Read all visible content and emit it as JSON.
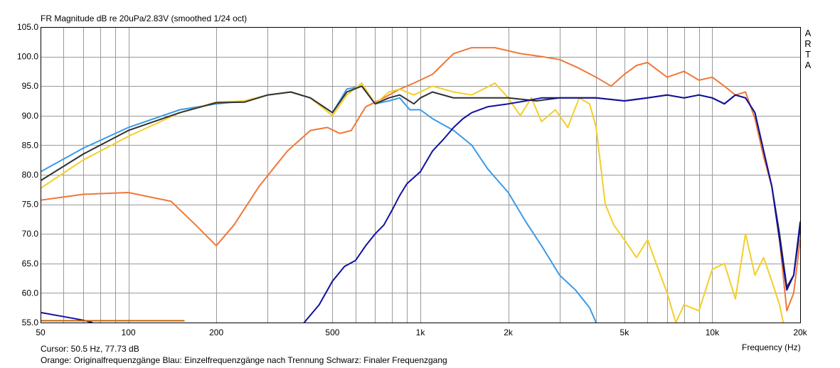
{
  "header": {
    "title": "FR Magnitude dB re 20uPa/2.83V (smoothed 1/24 oct)",
    "brand_letters": [
      "A",
      "R",
      "T",
      "A"
    ]
  },
  "footer": {
    "cursor": "Cursor: 50.5 Hz, 77.73 dB",
    "legend_text": "Orange: Originalfrequenzgänge   Blau: Einzelfrequenzgänge nach Trennung   Schwarz: Finaler Frequenzgang",
    "xlabel": "Frequency (Hz)"
  },
  "colors": {
    "orange": "#F07838",
    "light_blue": "#3A9AE8",
    "yellow": "#F4CE28",
    "black": "#303030",
    "dark_blue": "#1010A0",
    "cursor_line": "#C06000",
    "grid": "#9a9a9a"
  },
  "chart_data": {
    "type": "line",
    "title": "FR Magnitude dB re 20uPa/2.83V (smoothed 1/24 oct)",
    "xlabel": "Frequency (Hz)",
    "ylabel": "",
    "xscale": "log",
    "xlim": [
      50,
      20000
    ],
    "ylim": [
      55,
      105
    ],
    "grid": true,
    "x_tick_labels": [
      "50",
      "100",
      "200",
      "500",
      "1k",
      "2k",
      "5k",
      "10k",
      "20k"
    ],
    "x_tick_values": [
      50,
      100,
      200,
      500,
      1000,
      2000,
      5000,
      10000,
      20000
    ],
    "y_tick_labels": [
      "105.0",
      "100.0",
      "95.0",
      "90.0",
      "85.0",
      "80.0",
      "75.0",
      "70.0",
      "65.0",
      "60.0",
      "55.0"
    ],
    "y_tick_values": [
      105,
      100,
      95,
      90,
      85,
      80,
      75,
      70,
      65,
      60,
      55
    ],
    "series": [
      {
        "color": "#F07838",
        "x": [
          50,
          70,
          100,
          140,
          170,
          200,
          230,
          280,
          350,
          420,
          480,
          530,
          580,
          650,
          750,
          850,
          950,
          1100,
          1300,
          1500,
          1800,
          2200,
          2600,
          3000,
          3500,
          4000,
          4500,
          5000,
          5500,
          6000,
          7000,
          8000,
          9000,
          10000,
          11000,
          12000,
          13000,
          14000,
          15000,
          16000,
          17000,
          18000,
          19000,
          20000
        ],
        "y": [
          75.7,
          76.7,
          77.0,
          75.5,
          71.5,
          68.0,
          71.5,
          78.0,
          84.0,
          87.5,
          88.0,
          87.0,
          87.5,
          91.5,
          93.0,
          94.5,
          95.5,
          97.0,
          100.5,
          101.5,
          101.5,
          100.5,
          100.0,
          99.5,
          98.0,
          96.5,
          95.0,
          97.0,
          98.5,
          99.0,
          96.5,
          97.5,
          96.0,
          96.5,
          95.0,
          93.5,
          94.0,
          89.5,
          83.0,
          78.0,
          69.0,
          57.0,
          60.0,
          69.0
        ]
      },
      {
        "color": "#3A9AE8",
        "x": [
          50,
          70,
          100,
          150,
          200,
          250,
          300,
          360,
          420,
          500,
          560,
          630,
          700,
          780,
          850,
          920,
          1000,
          1100,
          1300,
          1500,
          1700,
          2000,
          2300,
          2600,
          3000,
          3400,
          3800,
          4000
        ],
        "y": [
          80.5,
          84.5,
          88.0,
          91.0,
          92.0,
          92.5,
          93.5,
          94.0,
          93.0,
          90.5,
          94.5,
          95.0,
          92.0,
          92.5,
          93.0,
          91.0,
          91.0,
          89.5,
          87.5,
          85.0,
          81.0,
          77.0,
          72.0,
          68.0,
          63.0,
          60.5,
          57.5,
          55.0
        ]
      },
      {
        "color": "#F4CE28",
        "x": [
          50,
          70,
          100,
          150,
          200,
          250,
          300,
          360,
          420,
          500,
          560,
          630,
          700,
          780,
          850,
          950,
          1100,
          1300,
          1500,
          1800,
          2000,
          2200,
          2400,
          2600,
          2900,
          3200,
          3500,
          3800,
          4000,
          4300,
          4600,
          5000,
          5500,
          6000,
          7000,
          7500,
          8000,
          9000,
          10000,
          11000,
          12000,
          13000,
          14000,
          15000,
          16000,
          17000,
          17500
        ],
        "y": [
          77.7,
          82.5,
          86.5,
          90.5,
          92.3,
          92.5,
          93.5,
          94.0,
          93.0,
          90.0,
          93.5,
          95.5,
          92.0,
          94.0,
          94.5,
          93.5,
          95.0,
          94.0,
          93.5,
          95.5,
          93.0,
          90.0,
          93.0,
          89.0,
          91.0,
          88.0,
          93.0,
          92.0,
          88.0,
          75.0,
          71.5,
          69.0,
          66.0,
          69.0,
          60.0,
          55.0,
          58.0,
          57.0,
          64.0,
          65.0,
          59.0,
          70.0,
          63.0,
          66.0,
          62.0,
          58.0,
          55.0
        ]
      },
      {
        "color": "#303030",
        "x": [
          50,
          70,
          100,
          150,
          200,
          250,
          300,
          360,
          420,
          500,
          560,
          630,
          700,
          780,
          850,
          950,
          1000,
          1100,
          1300,
          1500,
          2000,
          2500,
          3000,
          4000,
          5000,
          6000,
          7000,
          8000,
          9000,
          10000,
          11000,
          12000,
          13000,
          14000,
          15000,
          16000,
          17000,
          18000,
          19000,
          20000
        ],
        "y": [
          79.0,
          83.5,
          87.5,
          90.5,
          92.2,
          92.3,
          93.5,
          94.0,
          93.0,
          90.5,
          94.0,
          95.0,
          92.0,
          93.0,
          93.5,
          92.0,
          93.0,
          94.0,
          93.0,
          93.0,
          93.0,
          92.5,
          93.0,
          93.0,
          92.5,
          93.0,
          93.5,
          93.0,
          93.5,
          93.0,
          92.0,
          93.5,
          93.0,
          90.5,
          84.0,
          78.0,
          70.0,
          61.0,
          63.0,
          71.0
        ]
      },
      {
        "color": "#1010A0",
        "x": [
          400,
          450,
          500,
          550,
          600,
          650,
          700,
          750,
          800,
          850,
          900,
          1000,
          1100,
          1200,
          1300,
          1400,
          1500,
          1700,
          2000,
          2300,
          2600,
          3000,
          3500,
          4000,
          5000,
          6000,
          7000,
          8000,
          9000,
          10000,
          11000,
          12000,
          13000,
          14000,
          15000,
          16000,
          17000,
          18000,
          19000,
          20000
        ],
        "y": [
          55.0,
          58.0,
          62.0,
          64.5,
          65.5,
          68.0,
          70.0,
          71.5,
          74.0,
          76.5,
          78.5,
          80.5,
          84.0,
          86.0,
          88.0,
          89.5,
          90.5,
          91.5,
          92.0,
          92.5,
          93.0,
          93.0,
          93.0,
          93.0,
          92.5,
          93.0,
          93.5,
          93.0,
          93.5,
          93.0,
          92.0,
          93.5,
          93.0,
          90.5,
          84.0,
          78.0,
          69.0,
          60.5,
          63.0,
          72.0
        ]
      },
      {
        "color": "#1010A0",
        "x": [
          50,
          60,
          70,
          75
        ],
        "y": [
          56.7,
          56.0,
          55.4,
          55.0
        ]
      },
      {
        "color": "#C06000",
        "x": [
          50,
          155
        ],
        "y": [
          55.3,
          55.3
        ]
      }
    ]
  }
}
